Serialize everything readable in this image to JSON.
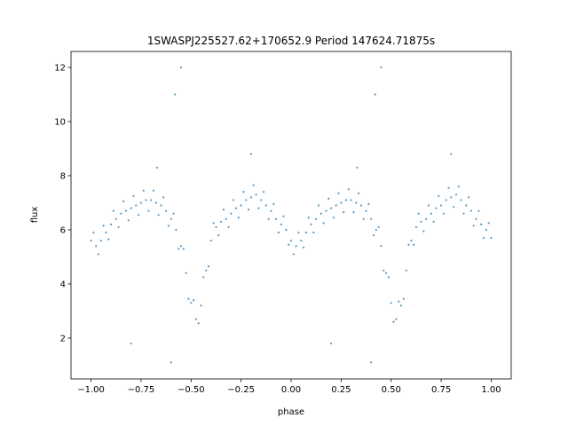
{
  "chart_data": {
    "type": "scatter",
    "title": "1SWASPJ225527.62+170652.9 Period 147624.71875s",
    "x_label": "phase",
    "y_label": "flux",
    "color": "#1f77b4",
    "xlim": [
      -1.1,
      1.1
    ],
    "ylim": [
      0.49,
      12.59
    ],
    "xticks": [
      {
        "value": -1,
        "label": "−1.00"
      },
      {
        "value": -0.75,
        "label": "−0.75"
      },
      {
        "value": -0.5,
        "label": "−0.50"
      },
      {
        "value": -0.25,
        "label": "−0.25"
      },
      {
        "value": 0,
        "label": "0.00"
      },
      {
        "value": 0.25,
        "label": "0.25"
      },
      {
        "value": 0.5,
        "label": "0.50"
      },
      {
        "value": 0.75,
        "label": "0.75"
      },
      {
        "value": 1,
        "label": "1.00"
      }
    ],
    "yticks": [
      2,
      4,
      6,
      8,
      10,
      12
    ],
    "x": [
      -1,
      -0.975,
      -0.95,
      -0.925,
      -0.9,
      -0.875,
      -0.85,
      -0.825,
      -0.8,
      -0.775,
      -0.75,
      -0.725,
      -0.7,
      -0.675,
      -0.65,
      -0.625,
      -0.6,
      -0.575,
      -0.55,
      -0.525,
      -0.5,
      -0.475,
      -0.45,
      -0.425,
      -0.4,
      -0.375,
      -0.35,
      -0.325,
      -0.3,
      -0.275,
      -0.25,
      -0.225,
      -0.2,
      -0.175,
      -0.15,
      -0.125,
      -0.1,
      -0.075,
      -0.05,
      -0.025,
      0,
      0.025,
      0.05,
      0.075,
      0.1,
      0.125,
      0.15,
      0.175,
      0.2,
      0.225,
      0.25,
      0.275,
      0.3,
      0.325,
      0.35,
      0.375,
      0.4,
      0.425,
      0.45,
      0.475,
      0.5,
      0.525,
      0.55,
      0.575,
      0.6,
      0.625,
      0.65,
      0.675,
      0.7,
      0.725,
      0.75,
      0.775,
      0.8,
      0.825,
      0.85,
      0.875,
      0.9,
      0.925,
      0.95,
      0.975,
      1,
      -0.9875,
      -0.9625,
      -0.9375,
      -0.9125,
      -0.8875,
      -0.8625,
      -0.8375,
      -0.8125,
      -0.7875,
      -0.7625,
      -0.7375,
      -0.7125,
      -0.6875,
      -0.6625,
      -0.6375,
      -0.6125,
      -0.5875,
      -0.5625,
      -0.5375,
      -0.5125,
      -0.4875,
      -0.4625,
      -0.4375,
      -0.4125,
      -0.3875,
      -0.3625,
      -0.3375,
      -0.3125,
      -0.2875,
      -0.2625,
      -0.2375,
      -0.2125,
      -0.1875,
      -0.1625,
      -0.1375,
      -0.1125,
      -0.0875,
      -0.0625,
      -0.0375,
      -0.0125,
      0.0125,
      0.0375,
      0.0625,
      0.0875,
      0.1125,
      0.1375,
      0.1625,
      0.1875,
      0.2125,
      0.2375,
      0.2625,
      0.2875,
      0.3125,
      0.3375,
      0.3625,
      0.3875,
      0.4125,
      0.4375,
      0.4625,
      0.4875,
      0.5125,
      0.5375,
      0.5625,
      0.5875,
      0.6125,
      0.6375,
      0.6625,
      0.6875,
      0.7125,
      0.7375,
      0.7625,
      0.7875,
      0.8125,
      0.8375,
      0.8625,
      0.8875,
      0.9125,
      0.9375,
      0.9625,
      0.9875,
      -0.58,
      -0.55,
      0.42,
      0.45,
      -0.8,
      0.2,
      -0.6,
      0.4,
      -0.67,
      0.33,
      -0.2,
      0.8
    ],
    "values": [
      5.6,
      5.4,
      5.6,
      5.9,
      6.2,
      6.4,
      6.6,
      6.7,
      6.8,
      6.9,
      7.0,
      7.1,
      7.1,
      7.0,
      6.9,
      6.7,
      6.4,
      6.0,
      5.4,
      4.4,
      3.3,
      2.7,
      3.2,
      4.5,
      5.6,
      6.1,
      6.3,
      6.4,
      6.6,
      6.8,
      6.9,
      7.1,
      7.2,
      7.3,
      7.1,
      6.9,
      6.7,
      6.4,
      6.2,
      6.0,
      5.6,
      5.4,
      5.6,
      5.9,
      6.2,
      6.4,
      6.6,
      6.7,
      6.8,
      6.9,
      7.0,
      7.1,
      7.1,
      7.0,
      6.9,
      6.7,
      6.4,
      6.0,
      5.4,
      4.4,
      3.3,
      2.7,
      3.2,
      4.5,
      5.6,
      6.1,
      6.3,
      6.4,
      6.6,
      6.8,
      6.9,
      7.1,
      7.2,
      7.3,
      7.1,
      6.9,
      6.7,
      6.4,
      6.2,
      6.0,
      5.7,
      5.9,
      5.1,
      6.15,
      5.65,
      6.7,
      6.1,
      7.05,
      6.35,
      7.25,
      6.55,
      7.45,
      6.7,
      7.45,
      6.55,
      7.2,
      6.15,
      6.6,
      5.3,
      5.3,
      3.45,
      3.4,
      2.55,
      4.25,
      4.65,
      6.25,
      5.8,
      6.75,
      6.1,
      7.1,
      6.45,
      7.4,
      6.75,
      7.65,
      6.8,
      7.4,
      6.4,
      6.95,
      5.9,
      6.5,
      5.45,
      5.1,
      5.9,
      5.35,
      6.45,
      5.9,
      6.9,
      6.25,
      7.15,
      6.45,
      7.35,
      6.65,
      7.5,
      6.65,
      7.35,
      6.4,
      6.95,
      5.8,
      6.1,
      4.5,
      4.25,
      2.6,
      3.35,
      3.45,
      5.45,
      5.45,
      6.6,
      5.95,
      6.9,
      6.3,
      7.25,
      6.6,
      7.55,
      6.85,
      7.6,
      6.6,
      7.2,
      6.15,
      6.7,
      5.7,
      6.25,
      11.0,
      12.0,
      11.0,
      12.0,
      1.8,
      1.8,
      1.1,
      1.1,
      8.3,
      8.3,
      8.8,
      8.8
    ]
  }
}
